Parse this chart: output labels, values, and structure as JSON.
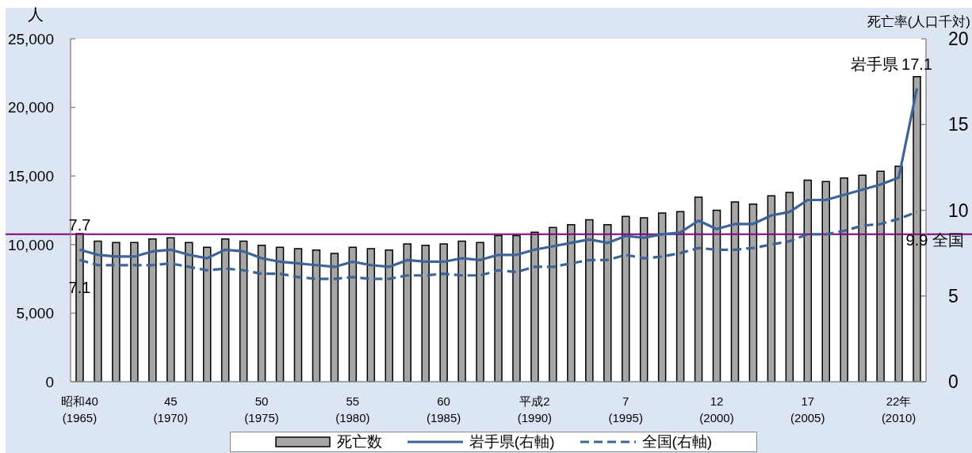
{
  "chart_data": {
    "type": "bar",
    "ylabel": "人",
    "y2label": "死亡率(人口千対)",
    "categories": [
      "昭和40\n(1965)",
      null,
      null,
      null,
      null,
      "45\n(1970)",
      null,
      null,
      null,
      null,
      "50\n(1975)",
      null,
      null,
      null,
      null,
      "55\n(1980)",
      null,
      null,
      null,
      null,
      "60\n(1985)",
      null,
      null,
      null,
      null,
      "平成2\n(1990)",
      null,
      null,
      null,
      null,
      "7\n(1995)",
      null,
      null,
      null,
      null,
      "12\n(2000)",
      null,
      null,
      null,
      null,
      "17\n(2005)",
      null,
      null,
      null,
      null,
      "22年\n(2010)",
      null
    ],
    "series": [
      {
        "name": "死亡数",
        "color": "#a6a6a6",
        "values": [
          10800,
          10250,
          10150,
          10150,
          10400,
          10500,
          10150,
          9800,
          10400,
          10250,
          9950,
          9800,
          9700,
          9600,
          9350,
          9800,
          9700,
          9600,
          10050,
          9950,
          10050,
          10250,
          10150,
          10650,
          10650,
          10900,
          11250,
          11450,
          11800,
          11450,
          12050,
          11950,
          12300,
          12400,
          13450,
          12500,
          13100,
          12950,
          13550,
          13800,
          14700,
          14600,
          14850,
          15050,
          15350,
          15700,
          22250
        ]
      },
      {
        "name": "岩手県(右軸)",
        "type": "line",
        "axis": "y2",
        "color": "#3c6496",
        "line_style": "solid",
        "values": [
          7.7,
          7.4,
          7.3,
          7.3,
          7.6,
          7.7,
          7.4,
          7.2,
          7.7,
          7.6,
          7.2,
          7.0,
          6.9,
          6.8,
          6.7,
          7.0,
          6.8,
          6.7,
          7.1,
          7.0,
          7.0,
          7.2,
          7.1,
          7.4,
          7.4,
          7.7,
          7.9,
          8.1,
          8.3,
          8.1,
          8.5,
          8.4,
          8.6,
          8.7,
          9.4,
          8.9,
          9.2,
          9.2,
          9.7,
          9.9,
          10.6,
          10.6,
          10.9,
          11.2,
          11.5,
          11.9,
          17.1
        ],
        "value_labels": [
          "7.7",
          null,
          null,
          null,
          null,
          null,
          null,
          null,
          null,
          null,
          null,
          null,
          null,
          null,
          null,
          null,
          null,
          null,
          null,
          null,
          null,
          null,
          null,
          null,
          null,
          null,
          null,
          null,
          null,
          null,
          null,
          null,
          null,
          null,
          null,
          null,
          null,
          null,
          null,
          null,
          null,
          null,
          null,
          null,
          null,
          null,
          "17.1"
        ]
      },
      {
        "name": "全国(右軸)",
        "type": "line",
        "axis": "y2",
        "color": "#3c6496",
        "line_style": "dashed",
        "values": [
          7.1,
          6.8,
          6.8,
          6.8,
          6.8,
          6.9,
          6.7,
          6.5,
          6.6,
          6.5,
          6.3,
          6.3,
          6.1,
          6.0,
          6.0,
          6.1,
          6.0,
          6.0,
          6.2,
          6.2,
          6.3,
          6.2,
          6.2,
          6.5,
          6.4,
          6.7,
          6.7,
          6.9,
          7.1,
          7.1,
          7.4,
          7.2,
          7.3,
          7.5,
          7.8,
          7.7,
          7.7,
          7.8,
          8.0,
          8.2,
          8.6,
          8.6,
          8.8,
          9.1,
          9.2,
          9.5,
          9.9
        ],
        "value_labels": [
          "7.1",
          null,
          null,
          null,
          null,
          null,
          null,
          null,
          null,
          null,
          null,
          null,
          null,
          null,
          null,
          null,
          null,
          null,
          null,
          null,
          null,
          null,
          null,
          null,
          null,
          null,
          null,
          null,
          null,
          null,
          null,
          null,
          null,
          null,
          null,
          null,
          null,
          null,
          null,
          null,
          null,
          null,
          null,
          null,
          null,
          null,
          "9.9"
        ]
      }
    ],
    "ylim": [
      0,
      25000
    ],
    "yticks": [
      0,
      {
        "value": 5000,
        "label": "5,000"
      },
      {
        "value": 10000,
        "label": "10,000"
      },
      {
        "value": 15000,
        "label": "15,000"
      },
      {
        "value": 20000,
        "label": "20,000"
      },
      {
        "value": 25000,
        "label": "25,000"
      }
    ],
    "y2lim": [
      0,
      20
    ],
    "y2ticks": [
      0,
      5,
      10,
      15,
      20
    ],
    "ref_lines": [
      {
        "axis": "y",
        "value": 10750,
        "color": "#7f007f"
      }
    ],
    "annotations": [
      "岩手県",
      "全国"
    ],
    "legend": "bottom"
  }
}
